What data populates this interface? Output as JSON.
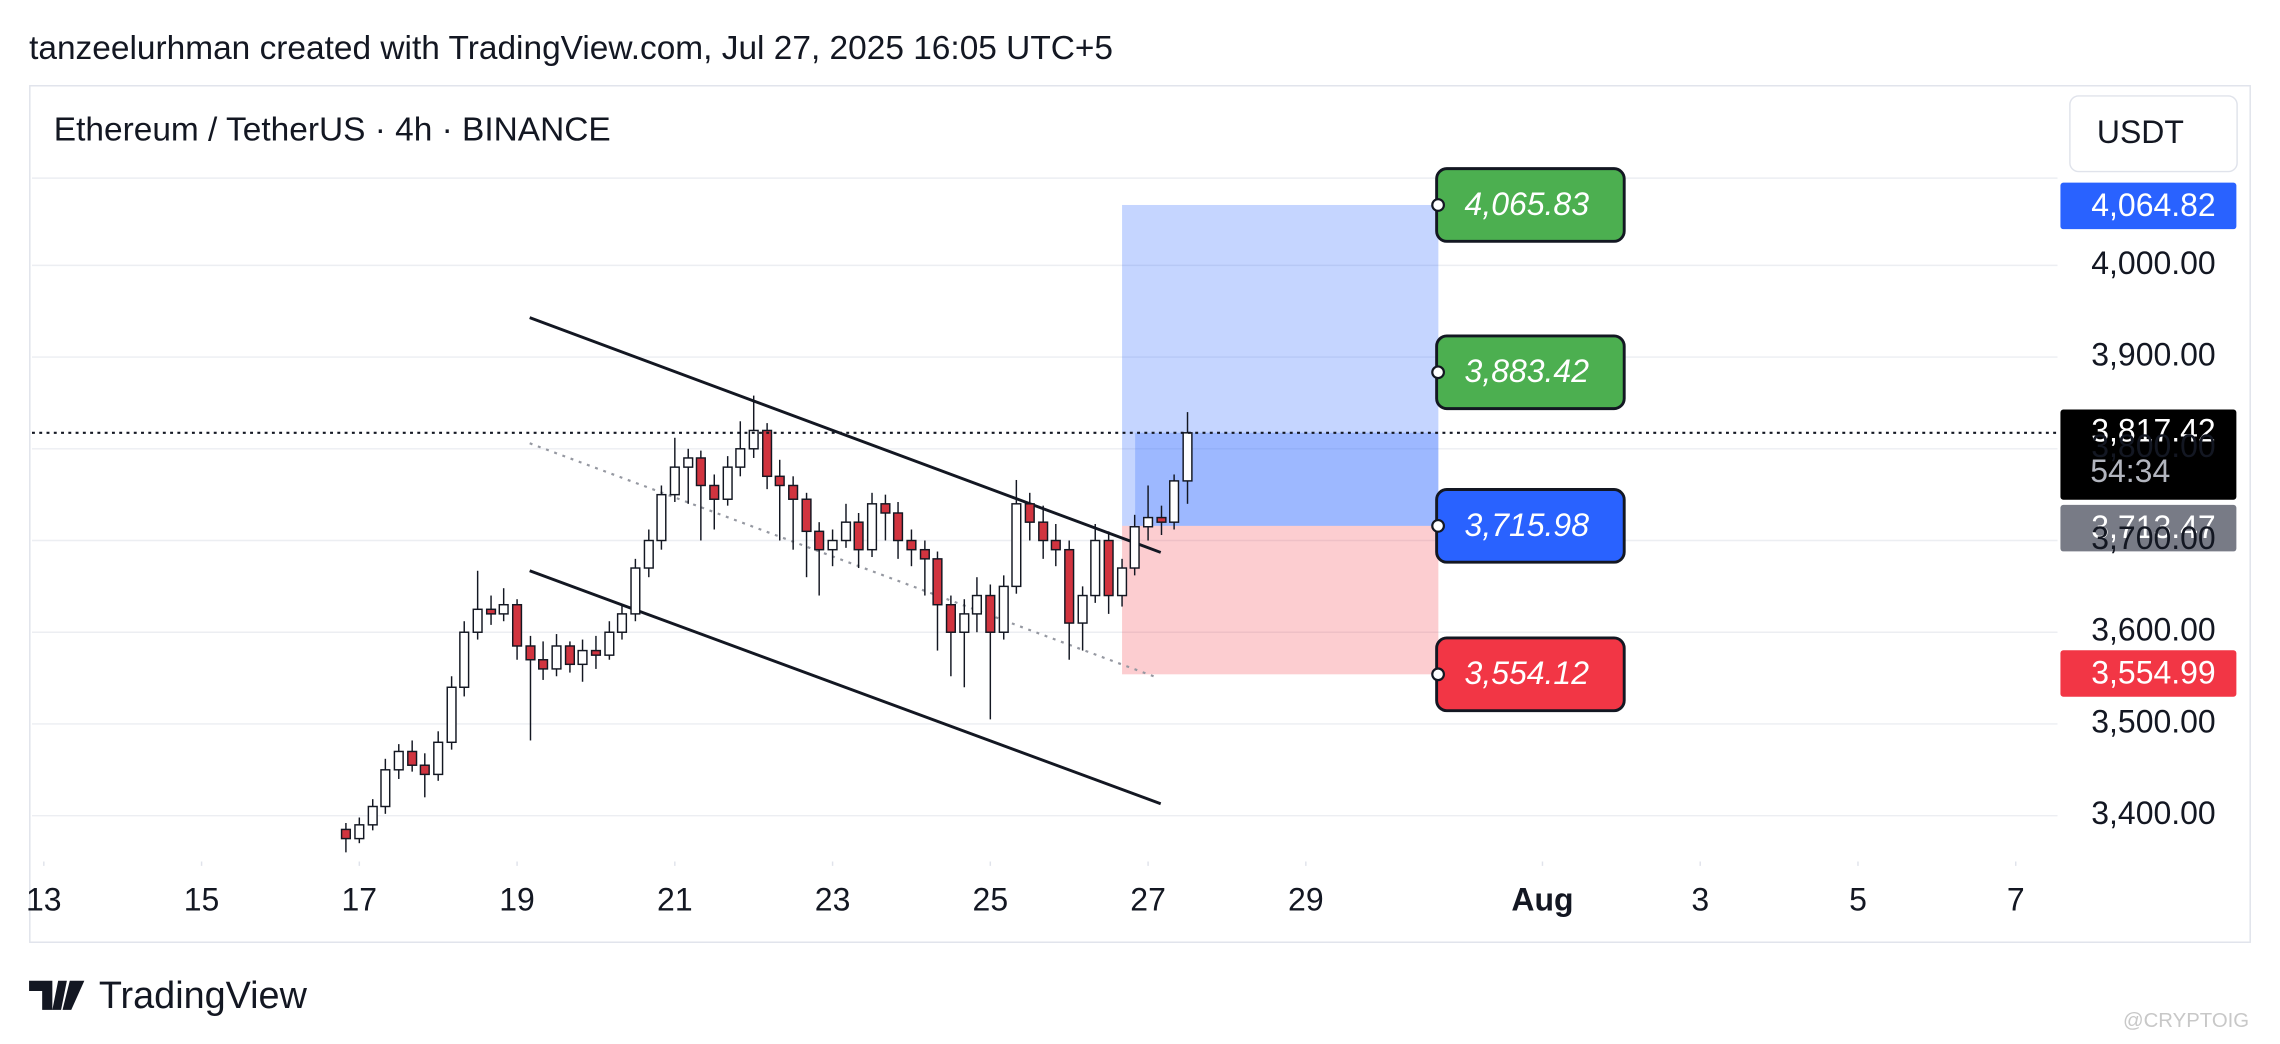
{
  "header": {
    "attribution": "tanzeelurhman created with TradingView.com, Jul 27, 2025 16:05 UTC+5"
  },
  "chart_data": {
    "type": "candlestick",
    "title": "Ethereum / TetherUS · 4h · BINANCE",
    "currency": "USDT",
    "x": [
      16.83,
      17,
      17.17,
      17.33,
      17.5,
      17.67,
      17.83,
      18,
      18.17,
      18.33,
      18.5,
      18.67,
      18.83,
      19,
      19.17,
      19.33,
      19.5,
      19.67,
      19.83,
      20,
      20.17,
      20.33,
      20.5,
      20.67,
      20.83,
      21,
      21.17,
      21.33,
      21.5,
      21.67,
      21.83,
      22,
      22.17,
      22.33,
      22.5,
      22.67,
      22.83,
      23,
      23.17,
      23.33,
      23.5,
      23.67,
      23.83,
      24,
      24.17,
      24.33,
      24.5,
      24.67,
      24.83,
      25,
      25.17,
      25.33,
      25.5,
      25.67,
      25.83,
      26,
      26.17,
      26.33,
      26.5,
      26.67,
      26.83,
      27,
      27.17,
      27.33,
      27.5
    ],
    "open": [
      3385,
      3375,
      3390,
      3410,
      3450,
      3470,
      3455,
      3445,
      3480,
      3540,
      3600,
      3625,
      3620,
      3630,
      3585,
      3570,
      3560,
      3585,
      3565,
      3580,
      3575,
      3600,
      3620,
      3670,
      3700,
      3750,
      3780,
      3790,
      3760,
      3745,
      3780,
      3800,
      3820,
      3770,
      3760,
      3745,
      3710,
      3690,
      3700,
      3720,
      3690,
      3740,
      3730,
      3700,
      3690,
      3680,
      3630,
      3600,
      3620,
      3640,
      3600,
      3650,
      3740,
      3720,
      3700,
      3690,
      3610,
      3640,
      3700,
      3640,
      3670,
      3715,
      3725,
      3720,
      3765
    ],
    "high": [
      3392,
      3398,
      3418,
      3462,
      3478,
      3482,
      3468,
      3492,
      3552,
      3612,
      3667,
      3640,
      3648,
      3636,
      3596,
      3590,
      3598,
      3590,
      3592,
      3596,
      3612,
      3630,
      3680,
      3712,
      3760,
      3812,
      3800,
      3798,
      3772,
      3792,
      3830,
      3858,
      3828,
      3788,
      3770,
      3752,
      3720,
      3712,
      3740,
      3730,
      3752,
      3750,
      3742,
      3712,
      3700,
      3688,
      3640,
      3636,
      3660,
      3652,
      3662,
      3766,
      3752,
      3738,
      3718,
      3700,
      3650,
      3718,
      3710,
      3680,
      3728,
      3760,
      3738,
      3772,
      3840
    ],
    "low": [
      3360,
      3370,
      3384,
      3402,
      3440,
      3448,
      3420,
      3438,
      3472,
      3530,
      3592,
      3608,
      3612,
      3570,
      3482,
      3548,
      3552,
      3556,
      3546,
      3560,
      3570,
      3592,
      3612,
      3660,
      3690,
      3742,
      3740,
      3700,
      3712,
      3738,
      3770,
      3790,
      3756,
      3700,
      3690,
      3660,
      3640,
      3672,
      3692,
      3670,
      3682,
      3700,
      3680,
      3672,
      3640,
      3580,
      3552,
      3540,
      3600,
      3505,
      3592,
      3642,
      3700,
      3680,
      3672,
      3570,
      3580,
      3632,
      3620,
      3628,
      3662,
      3700,
      3706,
      3712,
      3740
    ],
    "close": [
      3375,
      3390,
      3410,
      3450,
      3470,
      3455,
      3445,
      3480,
      3540,
      3600,
      3625,
      3620,
      3630,
      3585,
      3570,
      3560,
      3585,
      3565,
      3580,
      3575,
      3600,
      3620,
      3670,
      3700,
      3750,
      3780,
      3790,
      3760,
      3745,
      3780,
      3800,
      3820,
      3770,
      3760,
      3745,
      3710,
      3690,
      3700,
      3720,
      3690,
      3740,
      3730,
      3700,
      3690,
      3680,
      3630,
      3600,
      3620,
      3640,
      3600,
      3650,
      3740,
      3720,
      3700,
      3690,
      3610,
      3640,
      3700,
      3640,
      3670,
      3715,
      3725,
      3720,
      3765,
      3817.42
    ],
    "up_color": "#ffffff",
    "down_color": "#d1343f",
    "xlim": [
      12.85,
      38.53
    ],
    "xticks": [
      13,
      15,
      17,
      19,
      21,
      23,
      25,
      27,
      29,
      {
        "value": 32,
        "label": "Aug",
        "bold": true
      },
      {
        "value": 34,
        "label": "3"
      },
      {
        "value": 36,
        "label": "5"
      },
      {
        "value": 38,
        "label": "7"
      }
    ],
    "ylim": [
      3350,
      4195
    ],
    "yticks": [
      {
        "value": 3400,
        "label": "3,400.00"
      },
      {
        "value": 3500,
        "label": "3,500.00"
      },
      {
        "value": 3600,
        "label": "3,600.00"
      },
      {
        "value": 3700,
        "label": "3,700.00"
      },
      {
        "value": 3800,
        "label": "3,800.00"
      },
      {
        "value": 3900,
        "label": "3,900.00"
      },
      {
        "value": 4000,
        "label": "4,000.00"
      }
    ],
    "grid": true,
    "last_price": {
      "value": 3817.42,
      "label": "3,817.42",
      "countdown": "54:34"
    },
    "price_badges": [
      {
        "value": 4064.82,
        "label": "4,064.82",
        "color": "#2962ff"
      },
      {
        "value": 3713.47,
        "label": "3,713.47",
        "color": "#787b86"
      },
      {
        "value": 3554.99,
        "label": "3,554.99",
        "color": "#f23645"
      }
    ],
    "position": {
      "x": [
        26.67,
        30.68
      ],
      "target": {
        "value": 4065.83,
        "label": "4,065.83",
        "color": "#4caf50"
      },
      "target2": {
        "value": 3883.42,
        "label": "3,883.42",
        "color": "#4caf50"
      },
      "entry": {
        "value": 3715.98,
        "label": "3,715.98",
        "color": "#2962ff"
      },
      "stop": {
        "value": 3554.12,
        "label": "3,554.12",
        "color": "#f23645"
      },
      "profit_color": "#2962ff",
      "loss_color": "#f23645"
    },
    "trendlines": [
      {
        "x": [
          19.16,
          27.16
        ],
        "y": [
          3943,
          3687
        ],
        "style": "solid"
      },
      {
        "x": [
          19.16,
          27.16
        ],
        "y": [
          3667,
          3413
        ],
        "style": "solid"
      },
      {
        "x": [
          19.16,
          27.1
        ],
        "y": [
          3806,
          3551
        ],
        "style": "dotted"
      }
    ]
  },
  "footer": {
    "brand": "TradingView",
    "watermark": "@CRYPTOIG"
  }
}
